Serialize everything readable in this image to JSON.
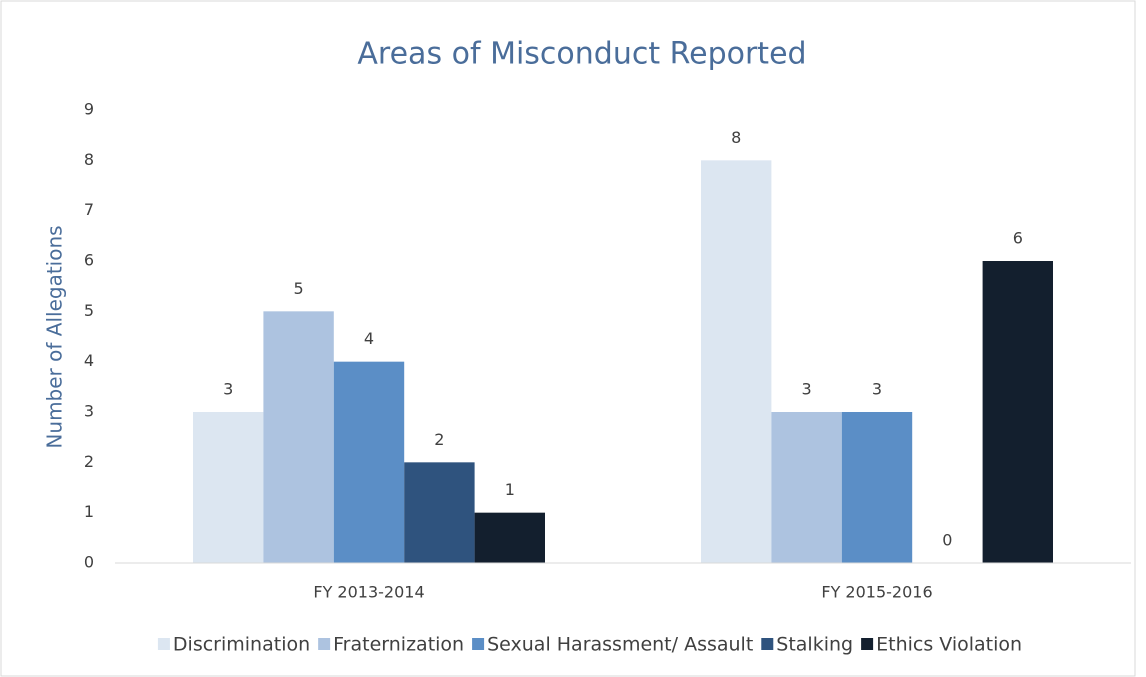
{
  "chart_data": {
    "type": "bar",
    "title": "Areas of Misconduct Reported",
    "ylabel": "Number of Allegations",
    "categories": [
      "FY 2013-2014",
      "FY 2015-2016"
    ],
    "series": [
      {
        "name": "Discrimination",
        "color": "#dce6f1",
        "values": [
          3,
          8
        ]
      },
      {
        "name": "Fraternization",
        "color": "#adc3e0",
        "values": [
          5,
          3
        ]
      },
      {
        "name": "Sexual Harassment/ Assault",
        "color": "#5b8ec6",
        "values": [
          4,
          3
        ]
      },
      {
        "name": "Stalking",
        "color": "#2f537e",
        "values": [
          2,
          0
        ]
      },
      {
        "name": "Ethics Violation",
        "color": "#131f2e",
        "values": [
          1,
          6
        ]
      }
    ],
    "ylim": [
      0,
      9
    ],
    "yticks": [
      0,
      1,
      2,
      3,
      4,
      5,
      6,
      7,
      8,
      9
    ],
    "grid": false,
    "legend": "bottom"
  }
}
